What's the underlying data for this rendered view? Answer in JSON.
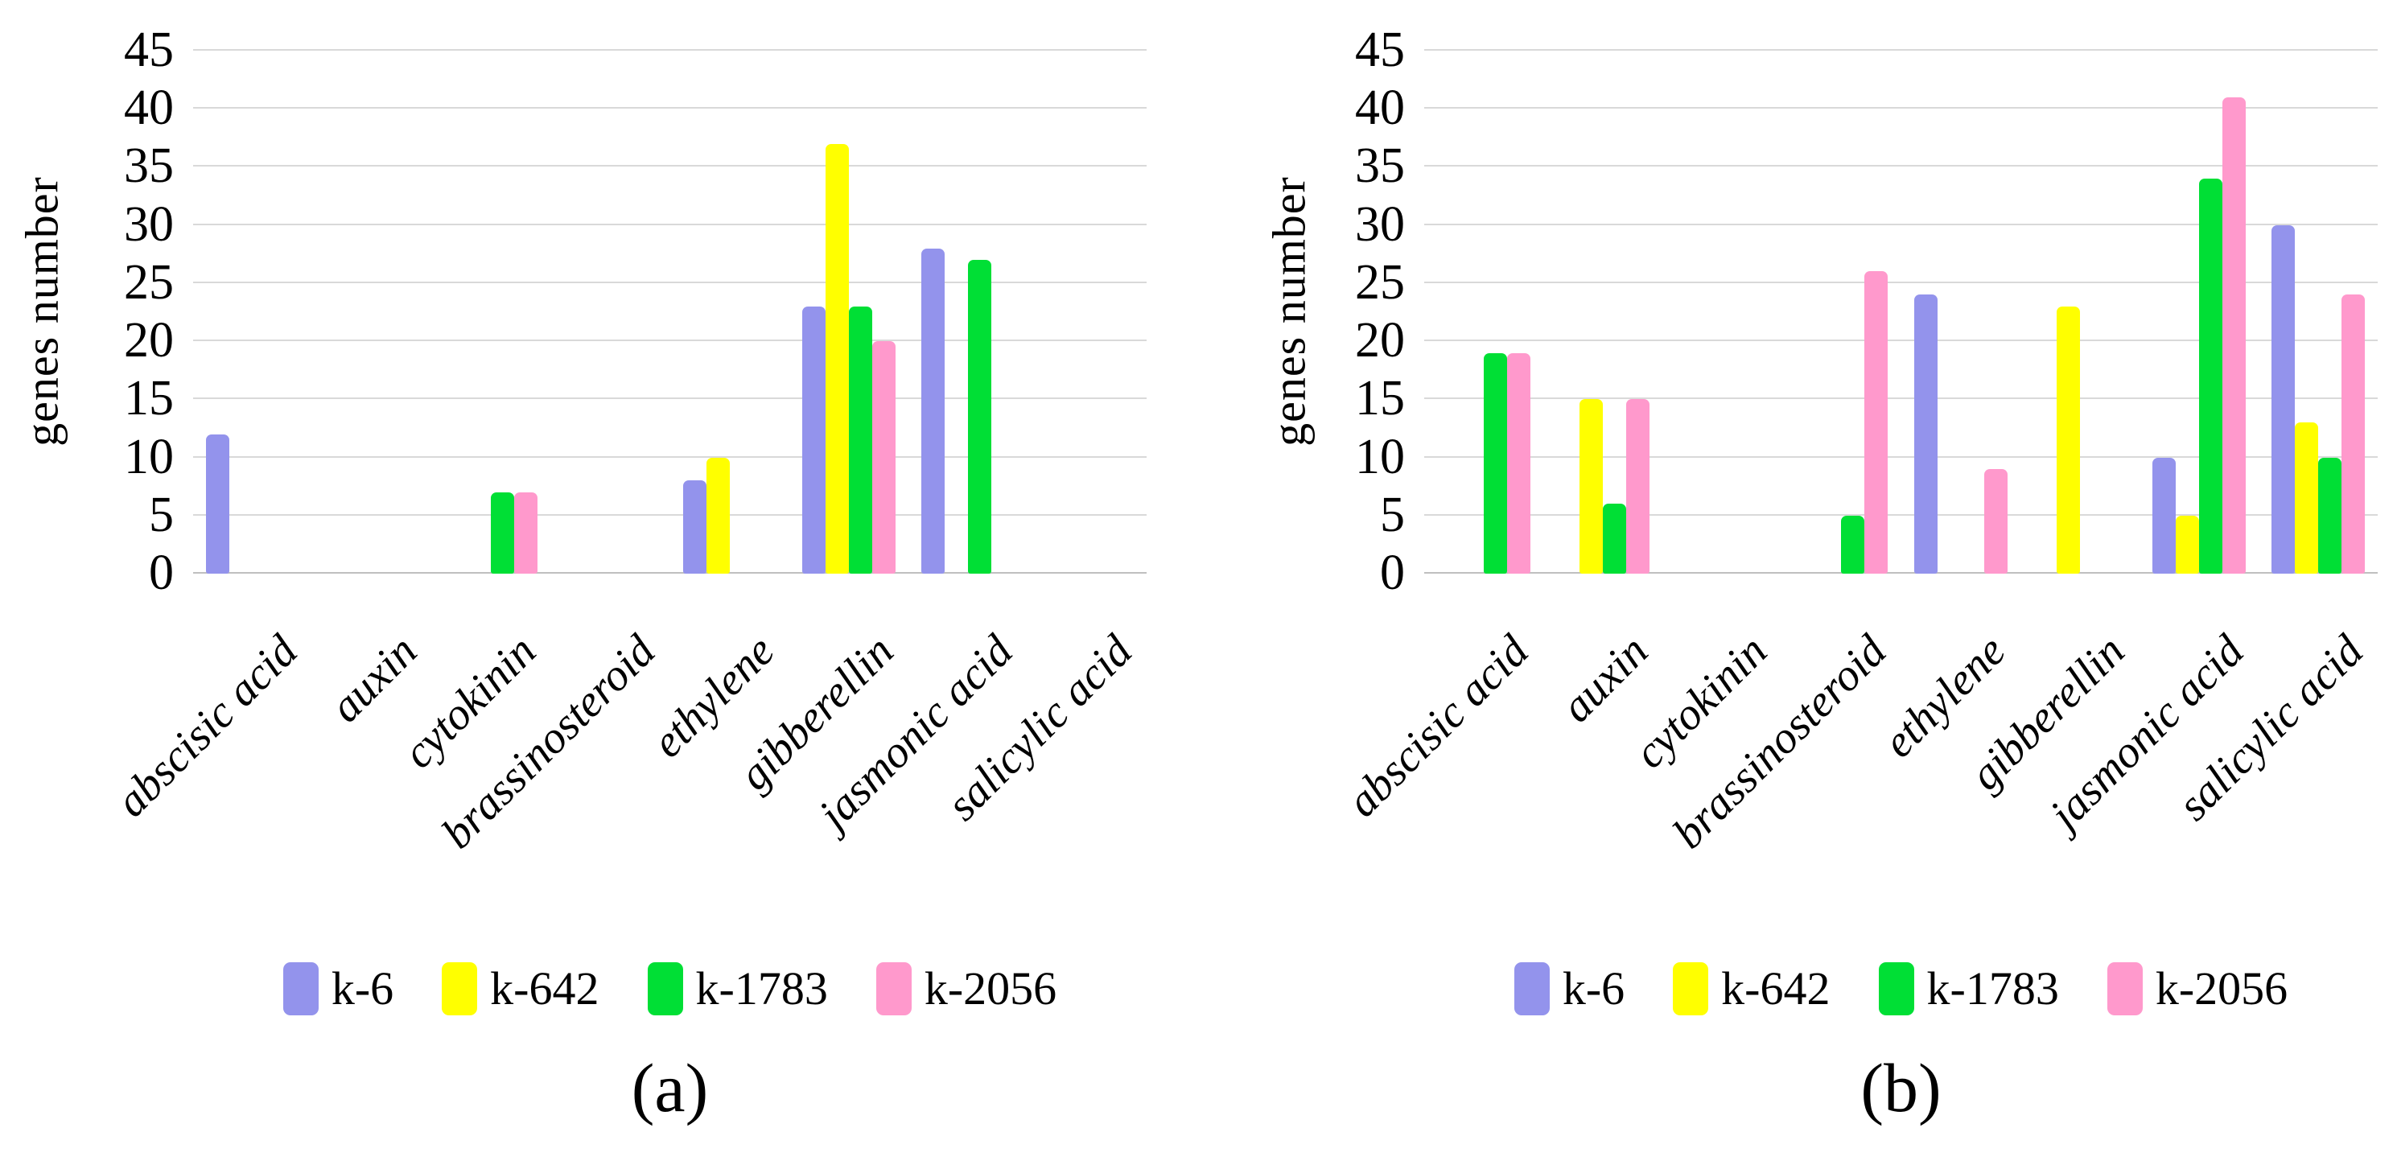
{
  "figure": {
    "ylabel": "genes number",
    "legend": [
      {
        "label": "k-6",
        "color": "#9393EC"
      },
      {
        "label": "k-642",
        "color": "#FFFF00"
      },
      {
        "label": "k-1783",
        "color": "#00DF35"
      },
      {
        "label": "k-2056",
        "color": "#FF99CC"
      }
    ],
    "colors": {
      "gridline": "#D9D9D9",
      "axis_line": "#BFBFBF",
      "text": "#000000",
      "background": "#FFFFFF"
    }
  },
  "chart_data": [
    {
      "type": "bar",
      "title": "(a)",
      "ylabel": "genes number",
      "xlabel": "",
      "ylim": [
        0,
        45
      ],
      "yticks": [
        0,
        5,
        10,
        15,
        20,
        25,
        30,
        35,
        40,
        45
      ],
      "grid": true,
      "legend_position": "bottom",
      "categories": [
        "abscisic acid",
        "auxin",
        "cytokinin",
        "brassinosteroid",
        "ethylene",
        "gibberellin",
        "jasmonic acid",
        "salicylic acid"
      ],
      "series": [
        {
          "name": "k-6",
          "color": "#9393EC",
          "values": [
            12,
            0,
            0,
            0,
            8,
            23,
            28,
            0
          ]
        },
        {
          "name": "k-642",
          "color": "#FFFF00",
          "values": [
            0,
            0,
            0,
            0,
            10,
            37,
            0,
            0
          ]
        },
        {
          "name": "k-1783",
          "color": "#00DF35",
          "values": [
            0,
            0,
            7,
            0,
            0,
            23,
            27,
            0
          ]
        },
        {
          "name": "k-2056",
          "color": "#FF99CC",
          "values": [
            0,
            0,
            7,
            0,
            0,
            20,
            0,
            0
          ]
        }
      ]
    },
    {
      "type": "bar",
      "title": "(b)",
      "ylabel": "genes number",
      "xlabel": "",
      "ylim": [
        0,
        45
      ],
      "yticks": [
        0,
        5,
        10,
        15,
        20,
        25,
        30,
        35,
        40,
        45
      ],
      "grid": true,
      "legend_position": "bottom",
      "categories": [
        "abscisic acid",
        "auxin",
        "cytokinin",
        "brassinosteroid",
        "ethylene",
        "gibberellin",
        "jasmonic acid",
        "salicylic acid"
      ],
      "series": [
        {
          "name": "k-6",
          "color": "#9393EC",
          "values": [
            0,
            0,
            0,
            0,
            24,
            0,
            10,
            30
          ]
        },
        {
          "name": "k-642",
          "color": "#FFFF00",
          "values": [
            0,
            15,
            0,
            0,
            0,
            23,
            5,
            13
          ]
        },
        {
          "name": "k-1783",
          "color": "#00DF35",
          "values": [
            19,
            6,
            0,
            5,
            0,
            0,
            34,
            10
          ]
        },
        {
          "name": "k-2056",
          "color": "#FF99CC",
          "values": [
            19,
            15,
            0,
            26,
            9,
            0,
            41,
            24
          ]
        }
      ]
    }
  ]
}
